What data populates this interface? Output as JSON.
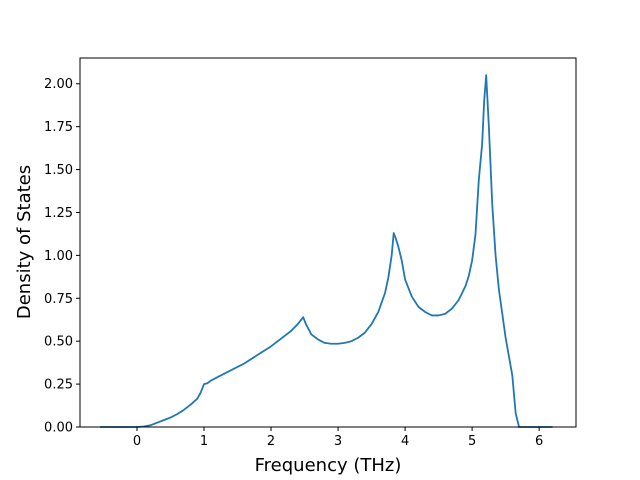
{
  "chart_data": {
    "type": "line",
    "title": "",
    "xlabel": "Frequency (THz)",
    "ylabel": "Density of States",
    "xlim": [
      -0.85,
      6.55
    ],
    "ylim": [
      0,
      2.15
    ],
    "xticks": [
      0,
      1,
      2,
      3,
      4,
      5,
      6
    ],
    "yticks": [
      0.0,
      0.25,
      0.5,
      0.75,
      1.0,
      1.25,
      1.5,
      1.75,
      2.0
    ],
    "grid": false,
    "legend": "none",
    "series_color": "#1f77b4",
    "series": [
      {
        "name": "",
        "x": [
          -0.55,
          0.0,
          0.1,
          0.2,
          0.3,
          0.4,
          0.5,
          0.6,
          0.7,
          0.8,
          0.9,
          0.95,
          1.0,
          1.05,
          1.1,
          1.2,
          1.4,
          1.6,
          1.8,
          2.0,
          2.2,
          2.3,
          2.4,
          2.48,
          2.52,
          2.6,
          2.7,
          2.8,
          2.9,
          3.0,
          3.1,
          3.2,
          3.3,
          3.4,
          3.5,
          3.6,
          3.7,
          3.75,
          3.8,
          3.83,
          3.86,
          3.9,
          3.95,
          4.0,
          4.1,
          4.2,
          4.3,
          4.4,
          4.5,
          4.6,
          4.7,
          4.8,
          4.9,
          4.95,
          5.0,
          5.05,
          5.1,
          5.15,
          5.18,
          5.21,
          5.25,
          5.3,
          5.35,
          5.4,
          5.5,
          5.6,
          5.65,
          5.7,
          5.8,
          6.0,
          6.2
        ],
        "values": [
          0.0,
          0.0,
          0.003,
          0.01,
          0.025,
          0.04,
          0.055,
          0.075,
          0.1,
          0.13,
          0.165,
          0.2,
          0.25,
          0.255,
          0.27,
          0.29,
          0.33,
          0.37,
          0.42,
          0.47,
          0.53,
          0.56,
          0.6,
          0.64,
          0.6,
          0.54,
          0.51,
          0.49,
          0.485,
          0.485,
          0.49,
          0.5,
          0.52,
          0.55,
          0.6,
          0.67,
          0.78,
          0.87,
          1.0,
          1.13,
          1.1,
          1.05,
          0.97,
          0.86,
          0.76,
          0.7,
          0.67,
          0.65,
          0.65,
          0.66,
          0.69,
          0.74,
          0.82,
          0.88,
          0.97,
          1.12,
          1.44,
          1.65,
          1.9,
          2.05,
          1.75,
          1.3,
          1.0,
          0.8,
          0.52,
          0.3,
          0.08,
          0.0,
          0.0,
          0.0,
          0.0
        ]
      }
    ]
  }
}
